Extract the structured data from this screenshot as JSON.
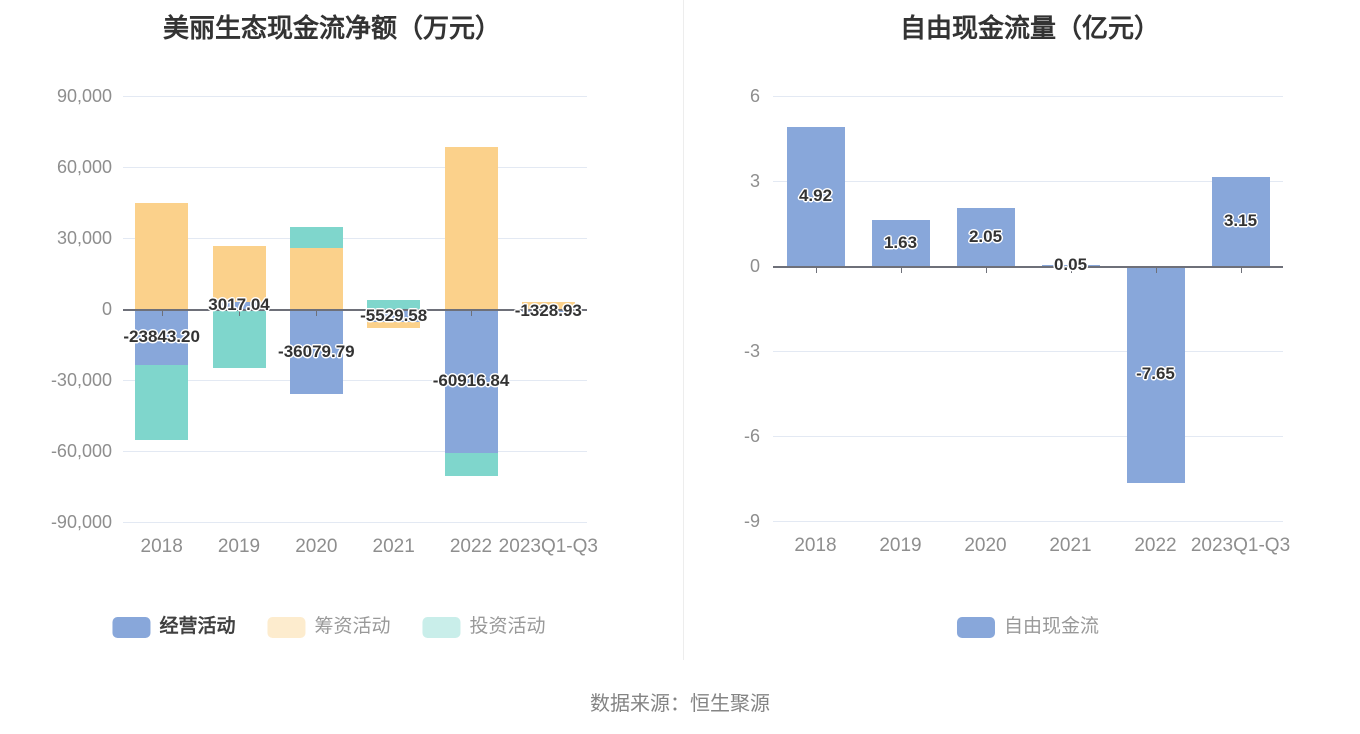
{
  "source": "数据来源：恒生聚源",
  "colors": {
    "operating_blue": "#88A7DA",
    "financing_orange": "#FBD18B",
    "investing_teal": "#7FD6CC",
    "grid_line": "#E3E9F3",
    "zero_axis": "#6E7079",
    "axis_label": "#8E8E8E",
    "data_label": "#333333",
    "title": "#333333",
    "legend_text_dark": "#404040",
    "legend_text_gray": "#999999"
  },
  "chart_data": [
    {
      "type": "bar",
      "stacked": true,
      "title": "美丽生态现金流净额（万元）",
      "categories": [
        "2018",
        "2019",
        "2020",
        "2021",
        "2022",
        "2023Q1-Q3"
      ],
      "ylim": [
        -90000,
        90000
      ],
      "grid": true,
      "legend_position": "bottom",
      "yticks": [
        {
          "value": 90000,
          "label": "90,000"
        },
        {
          "value": 60000,
          "label": "60,000"
        },
        {
          "value": 30000,
          "label": "30,000"
        },
        {
          "value": 0,
          "label": "0"
        },
        {
          "value": -30000,
          "label": "-30,000"
        },
        {
          "value": -60000,
          "label": "-60,000"
        },
        {
          "value": -90000,
          "label": "-90,000"
        }
      ],
      "series": [
        {
          "name": "经营活动",
          "color": "#88A7DA",
          "values": [
            -23843.2,
            3017.04,
            -36079.79,
            -5529.58,
            -60916.84,
            -1328.93
          ],
          "labels": [
            "-23843.20",
            "3017.04",
            "-36079.79",
            "-5529.58",
            "-60916.84",
            "-1328.93"
          ],
          "show_labels": true
        },
        {
          "name": "筹资活动",
          "color": "#FBD18B",
          "values": [
            44800,
            23600,
            25800,
            -2500,
            68500,
            3000
          ],
          "show_labels": false
        },
        {
          "name": "投资活动",
          "color": "#7FD6CC",
          "values": [
            -31500,
            -24900,
            8900,
            3800,
            -9700,
            0
          ],
          "show_labels": false
        }
      ],
      "legend": [
        {
          "label": "经营活动",
          "swatch": "#88A7DA",
          "swatch_faded": false,
          "text_dark": true
        },
        {
          "label": "筹资活动",
          "swatch": "#FBD18B",
          "swatch_faded": true,
          "text_dark": false
        },
        {
          "label": "投资活动",
          "swatch": "#7FD6CC",
          "swatch_faded": true,
          "text_dark": false
        }
      ]
    },
    {
      "type": "bar",
      "stacked": false,
      "title": "自由现金流量（亿元）",
      "categories": [
        "2018",
        "2019",
        "2020",
        "2021",
        "2022",
        "2023Q1-Q3"
      ],
      "ylim": [
        -9,
        6
      ],
      "grid": true,
      "legend_position": "bottom",
      "yticks": [
        {
          "value": 6,
          "label": "6"
        },
        {
          "value": 3,
          "label": "3"
        },
        {
          "value": 0,
          "label": "0"
        },
        {
          "value": -3,
          "label": "-3"
        },
        {
          "value": -6,
          "label": "-6"
        },
        {
          "value": -9,
          "label": "-9"
        }
      ],
      "series": [
        {
          "name": "自由现金流",
          "color": "#88A7DA",
          "values": [
            4.92,
            1.63,
            2.05,
            0.05,
            -7.65,
            3.15
          ],
          "labels": [
            "4.92",
            "1.63",
            "2.05",
            "0.05",
            "-7.65",
            "3.15"
          ],
          "show_labels": true
        }
      ],
      "legend": [
        {
          "label": "自由现金流",
          "swatch": "#88A7DA",
          "swatch_faded": false,
          "text_dark": false
        }
      ]
    }
  ]
}
